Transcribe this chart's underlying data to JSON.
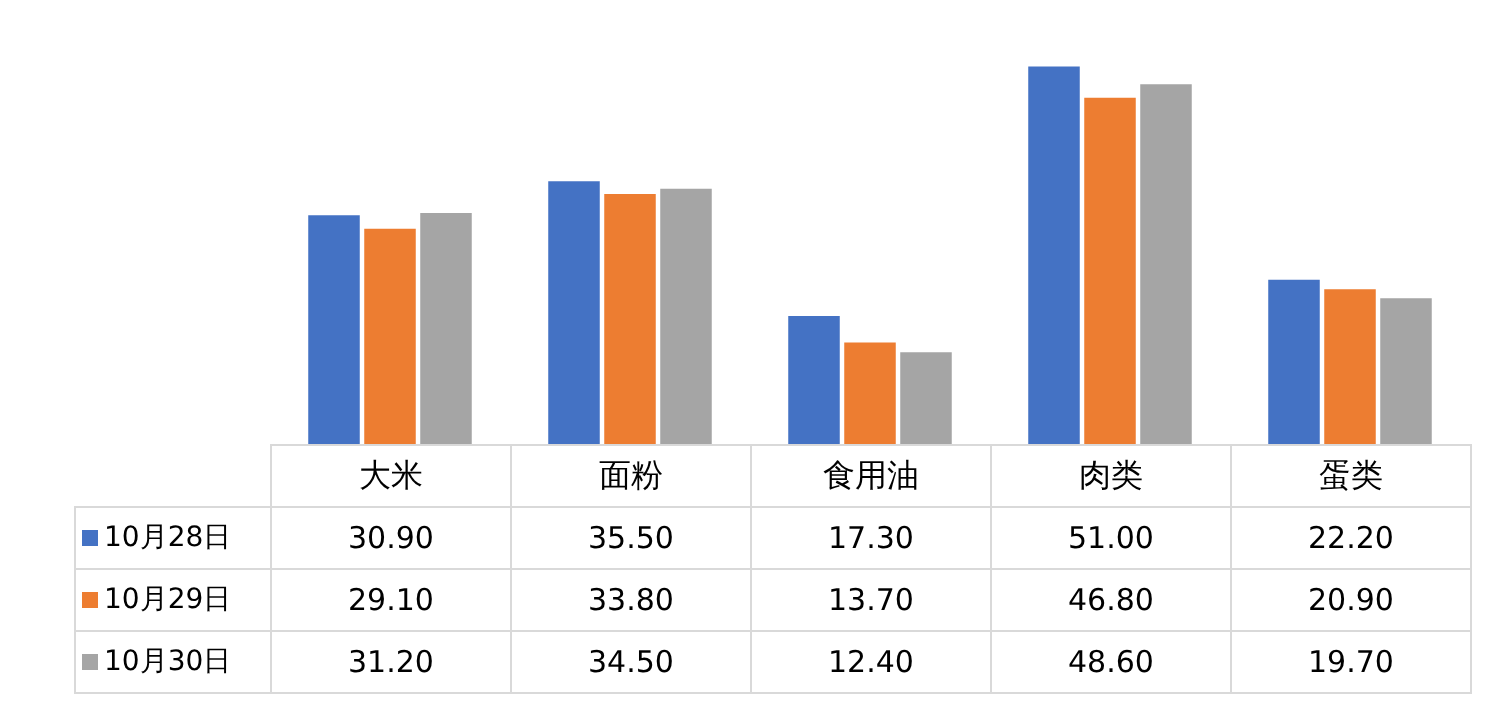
{
  "chart_data": {
    "type": "bar",
    "categories": [
      "大米",
      "面粉",
      "食用油",
      "肉类",
      "蛋类"
    ],
    "series": [
      {
        "name": "10月28日",
        "color": "#4472c4",
        "values": [
          30.9,
          35.5,
          17.3,
          51.0,
          22.2
        ],
        "value_labels": [
          "30.90",
          "35.50",
          "17.30",
          "51.00",
          "22.20"
        ]
      },
      {
        "name": "10月29日",
        "color": "#ed7d31",
        "values": [
          29.1,
          33.8,
          13.7,
          46.8,
          20.9
        ],
        "value_labels": [
          "29.10",
          "33.80",
          "13.70",
          "46.80",
          "20.90"
        ]
      },
      {
        "name": "10月30日",
        "color": "#a5a5a5",
        "values": [
          31.2,
          34.5,
          12.4,
          48.6,
          19.7
        ],
        "value_labels": [
          "31.20",
          "34.50",
          "12.40",
          "48.60",
          "19.70"
        ]
      }
    ],
    "legend": "bottom"
  }
}
